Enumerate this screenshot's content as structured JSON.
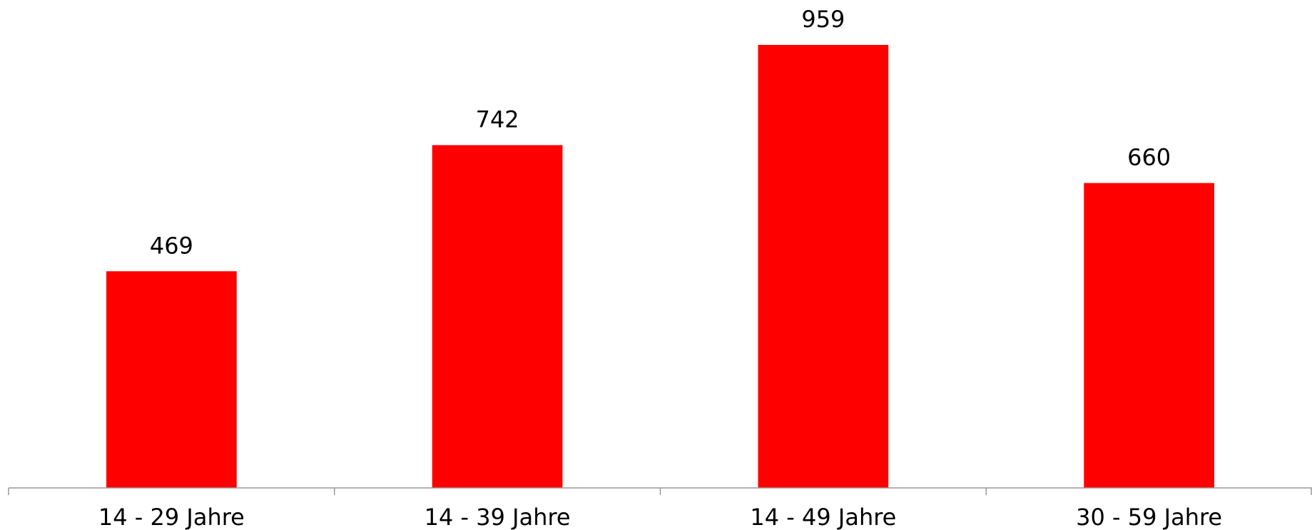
{
  "chart_data": {
    "type": "bar",
    "categories": [
      "14 - 29 Jahre",
      "14 - 39 Jahre",
      "14 - 49 Jahre",
      "30 - 59 Jahre"
    ],
    "values": [
      469,
      742,
      959,
      660
    ],
    "color": "#ff0000",
    "ylim": [
      0,
      1050
    ],
    "grid": false
  }
}
